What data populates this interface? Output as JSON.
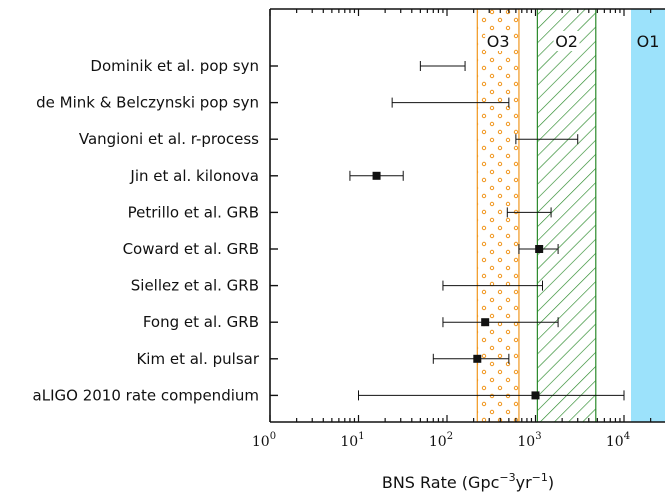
{
  "chart_data": {
    "type": "scatter",
    "orientation": "horizontal-errorbars",
    "xscale": "log",
    "xlim": [
      1,
      30000
    ],
    "xticks": [
      {
        "base": "10",
        "exp": "0",
        "value": 1
      },
      {
        "base": "10",
        "exp": "1",
        "value": 10
      },
      {
        "base": "10",
        "exp": "2",
        "value": 100
      },
      {
        "base": "10",
        "exp": "3",
        "value": 1000
      },
      {
        "base": "10",
        "exp": "4",
        "value": 10000
      }
    ],
    "xlabel": {
      "prefix": "BNS Rate (Gpc",
      "sup1": "−3",
      "mid": "yr",
      "sup2": "−1",
      "suffix": ")"
    },
    "grid": false,
    "categories": [
      "Dominik et al. pop syn",
      "de Mink & Belczynski pop syn",
      "Vangioni et al. r-process",
      "Jin et al. kilonova",
      "Petrillo et al. GRB",
      "Coward et al. GRB",
      "Siellez et al. GRB",
      "Fong et al. GRB",
      "Kim et al. pulsar",
      "aLIGO 2010 rate compendium"
    ],
    "estimates": [
      {
        "low": 50,
        "high": 160,
        "central": null
      },
      {
        "low": 24,
        "high": 500,
        "central": null
      },
      {
        "low": 600,
        "high": 3000,
        "central": null
      },
      {
        "low": 8,
        "high": 32,
        "central": 16
      },
      {
        "low": 480,
        "high": 1500,
        "central": null
      },
      {
        "low": 650,
        "high": 1800,
        "central": 1100
      },
      {
        "low": 90,
        "high": 1200,
        "central": null
      },
      {
        "low": 90,
        "high": 1800,
        "central": 270
      },
      {
        "low": 70,
        "high": 500,
        "central": 220
      },
      {
        "low": 10,
        "high": 10000,
        "central": 1000
      }
    ],
    "bands": [
      {
        "label": "O3",
        "from": 220,
        "to": 650,
        "style": "dots",
        "color": "#f0961e"
      },
      {
        "label": "O2",
        "from": 1050,
        "to": 4800,
        "style": "hatch",
        "color": "#2a8a2a"
      },
      {
        "label": "O1",
        "from": 12000,
        "to": 30000,
        "style": "solid",
        "color": "#9ce2fb"
      }
    ]
  }
}
